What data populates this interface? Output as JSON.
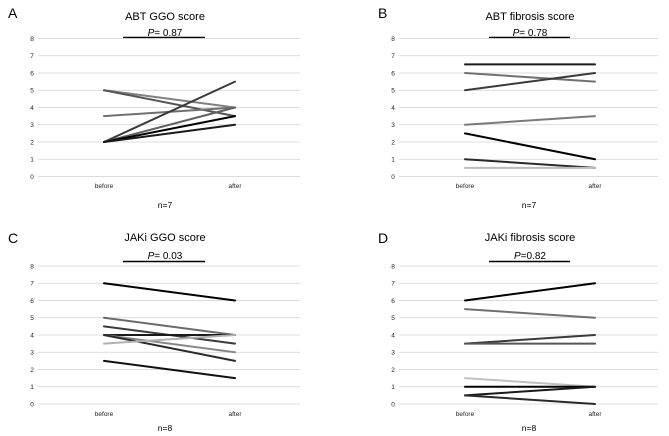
{
  "chart_data": [
    {
      "panel": "A",
      "type": "line",
      "title": "ABT GGO score",
      "p_label": "P",
      "p_value": "= 0.87",
      "categories": [
        "before",
        "after"
      ],
      "n_label": "n=7",
      "ylim": [
        0,
        8
      ],
      "yticks": [
        "0",
        "1",
        "2",
        "3",
        "4",
        "5",
        "6",
        "7",
        "8"
      ],
      "grid": true,
      "series": [
        {
          "values": [
            5,
            4
          ],
          "color": "#808080"
        },
        {
          "values": [
            5,
            3.5
          ],
          "color": "#555555"
        },
        {
          "values": [
            3.5,
            4
          ],
          "color": "#707070"
        },
        {
          "values": [
            2,
            5.5
          ],
          "color": "#3a3a3a"
        },
        {
          "values": [
            2,
            4
          ],
          "color": "#606060"
        },
        {
          "values": [
            2,
            3.5
          ],
          "color": "#000000"
        },
        {
          "values": [
            2,
            3
          ],
          "color": "#1a1a1a"
        }
      ]
    },
    {
      "panel": "B",
      "type": "line",
      "title": "ABT fibrosis score",
      "p_label": "P",
      "p_value": "= 0.78",
      "categories": [
        "before",
        "after"
      ],
      "n_label": "n=7",
      "ylim": [
        0,
        8
      ],
      "yticks": [
        "0",
        "1",
        "2",
        "3",
        "4",
        "5",
        "6",
        "7",
        "8"
      ],
      "grid": true,
      "series": [
        {
          "values": [
            6.5,
            6.5
          ],
          "color": "#1a1a1a"
        },
        {
          "values": [
            6,
            5.5
          ],
          "color": "#707070"
        },
        {
          "values": [
            5,
            6
          ],
          "color": "#3a3a3a"
        },
        {
          "values": [
            3,
            3.5
          ],
          "color": "#7a7a7a"
        },
        {
          "values": [
            2.5,
            1
          ],
          "color": "#000000"
        },
        {
          "values": [
            1,
            0.5
          ],
          "color": "#2a2a2a"
        },
        {
          "values": [
            0.5,
            0.5
          ],
          "color": "#bbbbbb"
        }
      ]
    },
    {
      "panel": "C",
      "type": "line",
      "title": "JAKi GGO score",
      "p_label": "P",
      "p_value": "= 0.03",
      "categories": [
        "before",
        "after"
      ],
      "n_label": "n=8",
      "ylim": [
        0,
        8
      ],
      "yticks": [
        "0",
        "1",
        "2",
        "3",
        "4",
        "5",
        "6",
        "7",
        "8"
      ],
      "grid": true,
      "series": [
        {
          "values": [
            7,
            6
          ],
          "color": "#000000"
        },
        {
          "values": [
            5,
            4
          ],
          "color": "#6a6a6a"
        },
        {
          "values": [
            4.5,
            3.5
          ],
          "color": "#3a3a3a"
        },
        {
          "values": [
            4,
            4
          ],
          "color": "#1a1a1a"
        },
        {
          "values": [
            4,
            3
          ],
          "color": "#888888"
        },
        {
          "values": [
            4,
            2.5
          ],
          "color": "#2a2a2a"
        },
        {
          "values": [
            3.5,
            4
          ],
          "color": "#b0b0b0"
        },
        {
          "values": [
            2.5,
            1.5
          ],
          "color": "#111111"
        }
      ]
    },
    {
      "panel": "D",
      "type": "line",
      "title": "JAKi fibrosis score",
      "p_label": "P",
      "p_value": "=0.82",
      "categories": [
        "before",
        "after"
      ],
      "n_label": "n=8",
      "ylim": [
        0,
        8
      ],
      "yticks": [
        "0",
        "1",
        "2",
        "3",
        "4",
        "5",
        "6",
        "7",
        "8"
      ],
      "grid": true,
      "series": [
        {
          "values": [
            6,
            7
          ],
          "color": "#000000"
        },
        {
          "values": [
            5.5,
            5
          ],
          "color": "#707070"
        },
        {
          "values": [
            3.5,
            4
          ],
          "color": "#3a3a3a"
        },
        {
          "values": [
            3.5,
            3.5
          ],
          "color": "#555555"
        },
        {
          "values": [
            1.5,
            1
          ],
          "color": "#c0c0c0"
        },
        {
          "values": [
            1,
            1
          ],
          "color": "#000000"
        },
        {
          "values": [
            0.5,
            1
          ],
          "color": "#1a1a1a"
        },
        {
          "values": [
            0.5,
            0
          ],
          "color": "#2a2a2a"
        }
      ]
    }
  ]
}
